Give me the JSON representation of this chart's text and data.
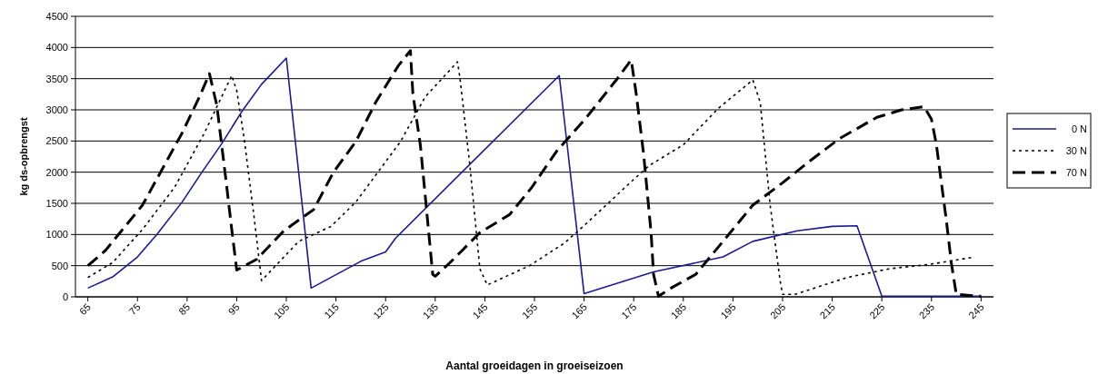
{
  "chart_data": {
    "type": "line",
    "xlabel": "Aantal groeidagen in groeiseizoen",
    "ylabel": "kg ds-opbrengst",
    "xlim": [
      62.5,
      247.5
    ],
    "xticks": [
      65,
      75,
      85,
      95,
      105,
      115,
      125,
      135,
      145,
      155,
      165,
      175,
      185,
      195,
      205,
      215,
      225,
      235,
      245
    ],
    "ylim": [
      0,
      4500
    ],
    "yticks": [
      0,
      500,
      1000,
      1500,
      2000,
      2500,
      3000,
      3500,
      4000,
      4500
    ],
    "grid": "y",
    "legend": "right",
    "marker": "none",
    "series": [
      {
        "name": "0 N",
        "color": "#1a1a96",
        "line_style": "solid",
        "x": [
          65,
          70,
          75,
          79,
          84,
          88,
          92,
          96,
          100,
          105,
          110,
          120,
          125,
          127,
          160,
          165,
          179,
          193,
          199,
          208,
          215,
          220,
          225,
          245
        ],
        "values": [
          140,
          320,
          640,
          1010,
          1520,
          2000,
          2460,
          2970,
          3410,
          3830,
          140,
          570,
          720,
          940,
          3550,
          50,
          400,
          640,
          890,
          1060,
          1130,
          1140,
          10,
          10
        ]
      },
      {
        "name": "30 N",
        "color": "#000000",
        "line_style": "dotted",
        "x": [
          65,
          70,
          76,
          82.5,
          88.5,
          94,
          95,
          96.5,
          98.5,
          100,
          107.5,
          114,
          119,
          128,
          133,
          139.5,
          140,
          142,
          144,
          145.5,
          154,
          161,
          165.5,
          174,
          178,
          185,
          192,
          199,
          200.5,
          202.5,
          204.5,
          205,
          207.5,
          218,
          226.5,
          234.5,
          243
        ],
        "values": [
          310,
          550,
          1080,
          1760,
          2630,
          3550,
          3310,
          2540,
          1280,
          260,
          890,
          1130,
          1520,
          2490,
          3210,
          3770,
          3500,
          2100,
          450,
          190,
          500,
          860,
          1180,
          1810,
          2100,
          2440,
          3020,
          3480,
          3120,
          1470,
          260,
          40,
          40,
          310,
          450,
          520,
          630
        ]
      },
      {
        "name": "70 N",
        "color": "#000000",
        "line_style": "dashed",
        "x": [
          65,
          68.5,
          76,
          80,
          84,
          87.5,
          89.5,
          91,
          93,
          94,
          95,
          99,
          104.5,
          110.5,
          114.5,
          119,
          123,
          127.5,
          130,
          130.5,
          132,
          133,
          134.5,
          135,
          138,
          144,
          150,
          154.5,
          159.5,
          165.5,
          171.5,
          174.5,
          175.5,
          177,
          178.5,
          179,
          180,
          182.5,
          187.5,
          193,
          199,
          205,
          210,
          216.5,
          224,
          229,
          233.5,
          235,
          236,
          238,
          239,
          240,
          245
        ],
        "values": [
          500,
          740,
          1470,
          2050,
          2630,
          3210,
          3580,
          3070,
          1760,
          1080,
          430,
          600,
          1060,
          1400,
          2000,
          2490,
          3120,
          3700,
          3950,
          3260,
          2440,
          1610,
          360,
          330,
          550,
          1030,
          1320,
          1760,
          2340,
          2880,
          3480,
          3800,
          3260,
          2290,
          1030,
          360,
          10,
          140,
          360,
          890,
          1470,
          1830,
          2150,
          2540,
          2880,
          3000,
          3050,
          2850,
          2440,
          1230,
          550,
          40,
          10
        ]
      }
    ]
  }
}
